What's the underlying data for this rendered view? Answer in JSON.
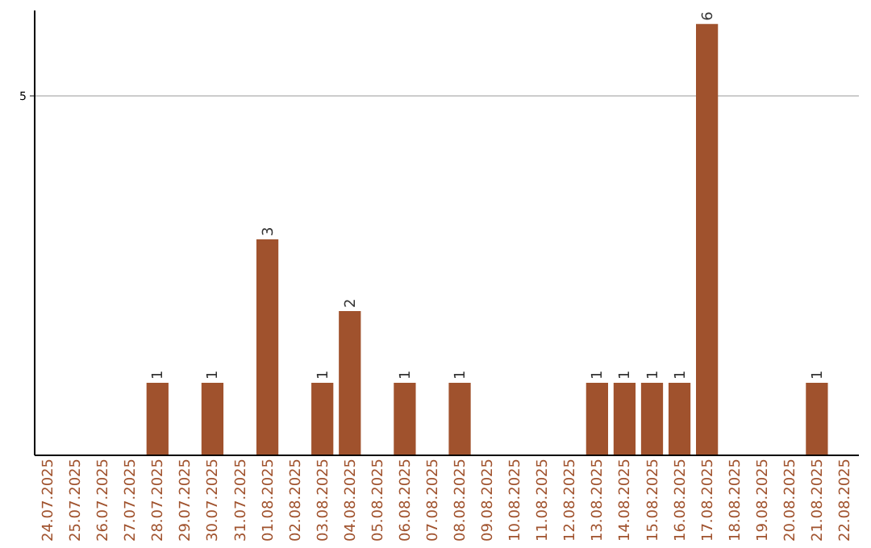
{
  "chart_data": {
    "type": "bar",
    "categories": [
      "24.07.2025",
      "25.07.2025",
      "26.07.2025",
      "27.07.2025",
      "28.07.2025",
      "29.07.2025",
      "30.07.2025",
      "31.07.2025",
      "01.08.2025",
      "02.08.2025",
      "03.08.2025",
      "04.08.2025",
      "05.08.2025",
      "06.08.2025",
      "07.08.2025",
      "08.08.2025",
      "09.08.2025",
      "10.08.2025",
      "11.08.2025",
      "12.08.2025",
      "13.08.2025",
      "14.08.2025",
      "15.08.2025",
      "16.08.2025",
      "17.08.2025",
      "18.08.2025",
      "19.08.2025",
      "20.08.2025",
      "21.08.2025",
      "22.08.2025"
    ],
    "values": [
      0,
      0,
      0,
      0,
      1,
      0,
      1,
      0,
      3,
      0,
      1,
      2,
      0,
      1,
      0,
      1,
      0,
      0,
      0,
      0,
      1,
      1,
      1,
      1,
      6,
      0,
      0,
      0,
      1,
      0
    ],
    "value_labels": [
      null,
      null,
      null,
      null,
      "1",
      null,
      "1",
      null,
      "3",
      null,
      "1",
      "2",
      null,
      "1",
      null,
      "1",
      null,
      null,
      null,
      null,
      "1",
      "1",
      "1",
      "1",
      "6",
      null,
      null,
      null,
      "1",
      null
    ],
    "color": "#a0522d",
    "ylim": [
      0,
      6.2
    ],
    "yticks": [
      5
    ],
    "grid": "y"
  }
}
